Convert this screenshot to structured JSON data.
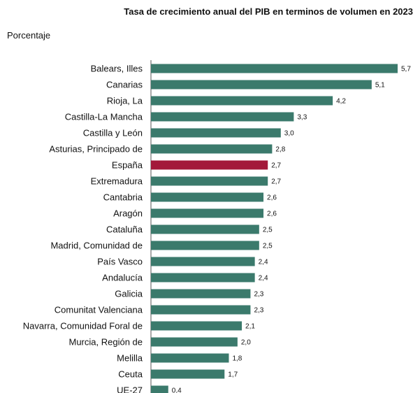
{
  "chart_data": {
    "type": "bar",
    "orientation": "horizontal",
    "title": "Tasa de crecimiento anual del PIB en terminos de volumen en 2023",
    "unit_label": "Porcentaje",
    "categories": [
      "Balears, Illes",
      "Canarias",
      "Rioja, La",
      "Castilla-La Mancha",
      "Castilla y León",
      "Asturias, Principado de",
      "España",
      "Extremadura",
      "Cantabria",
      "Aragón",
      "Cataluña",
      "Madrid, Comunidad de",
      "País Vasco",
      "Andalucía",
      "Galicia",
      "Comunitat Valenciana",
      "Navarra, Comunidad Foral de",
      "Murcia, Región de",
      "Melilla",
      "Ceuta",
      "UE-27"
    ],
    "values": [
      5.7,
      5.1,
      4.2,
      3.3,
      3.0,
      2.8,
      2.7,
      2.7,
      2.6,
      2.6,
      2.5,
      2.5,
      2.4,
      2.4,
      2.3,
      2.3,
      2.1,
      2.0,
      1.8,
      1.7,
      0.4
    ],
    "value_labels": [
      "5,7",
      "5,1",
      "4,2",
      "3,3",
      "3,0",
      "2,8",
      "2,7",
      "2,7",
      "2,6",
      "2,6",
      "2,5",
      "2,5",
      "2,4",
      "2,4",
      "2,3",
      "2,3",
      "2,1",
      "2,0",
      "1,8",
      "1,7",
      "0,4"
    ],
    "highlight_category": "España",
    "xlim": [
      0,
      5.7
    ],
    "grid": false,
    "legend": "none",
    "colors": {
      "bar": "#3b7a6c",
      "highlight": "#a3193a",
      "axis": "#555555"
    }
  }
}
